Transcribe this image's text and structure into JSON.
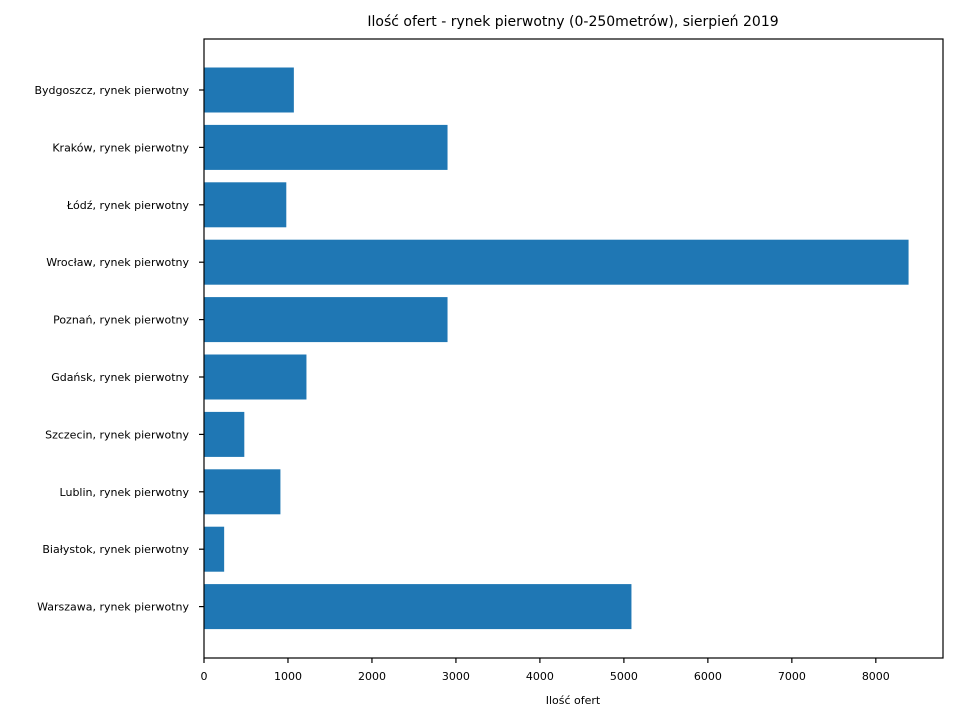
{
  "chart_data": {
    "type": "bar",
    "orientation": "horizontal",
    "title": "Ilość ofert - rynek pierwotny (0-250metrów), sierpień 2019",
    "xlabel": "Ilość ofert",
    "ylabel": "",
    "xlim": [
      0,
      8800
    ],
    "xticks": [
      0,
      1000,
      2000,
      3000,
      4000,
      5000,
      6000,
      7000,
      8000
    ],
    "grid": false,
    "bar_color": "#1f77b4",
    "categories": [
      "Bydgoszcz, rynek pierwotny",
      "Kraków, rynek pierwotny",
      "Łódź, rynek pierwotny",
      "Wrocław, rynek pierwotny",
      "Poznań, rynek pierwotny",
      "Gdańsk, rynek pierwotny",
      "Szczecin, rynek pierwotny",
      "Lublin, rynek pierwotny",
      "Białystok, rynek pierwotny",
      "Warszawa, rynek pierwotny"
    ],
    "values": [
      1070,
      2900,
      980,
      8390,
      2900,
      1220,
      480,
      910,
      240,
      5090
    ]
  }
}
